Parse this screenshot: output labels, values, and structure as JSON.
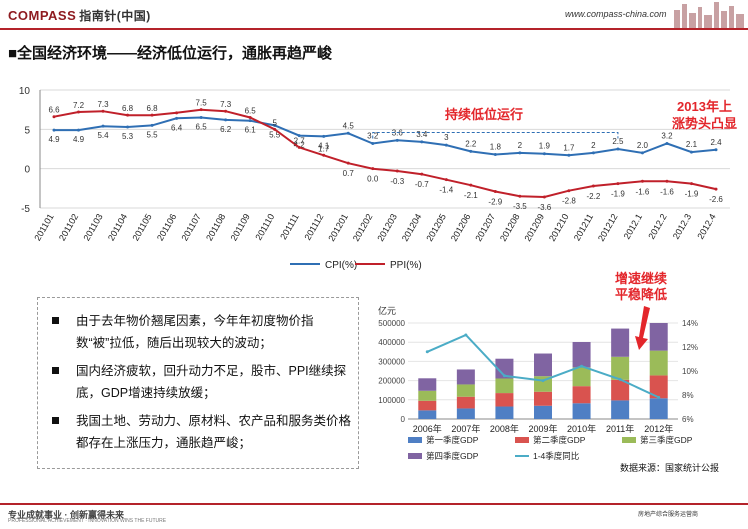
{
  "header": {
    "logo_text": "COMPASS",
    "logo_cn": "指南针(中国)",
    "website": "www.compass-china.com"
  },
  "page_title": "■全国经济环境——经济低位运行，通胀再趋严峻",
  "annotations": {
    "low_run": "持续低位运行",
    "rise_line1": "2013年上",
    "rise_line2": "涨势头凸显",
    "gdp_line1": "增速继续",
    "gdp_line2": "平稳降低"
  },
  "bullets": [
    "由于去年物价翘尾因素，今年年初度物价指数“被”拉低，随后出现较大的波动；",
    "国内经济疲软，回升动力不足，股市、PPI继续探底，GDP增速持续放缓；",
    "我国土地、劳动力、原材料、农产品和服务类价格都存在上涨压力，通胀趋严峻；"
  ],
  "source": "数据来源：国家统计公报",
  "footer": {
    "slogan": "专业成就事业 · 创新赢得未来",
    "slogan_en": "PROFESSIONAL ACHIEVEMENT · INNOVATION WINS THE FUTURE",
    "right": "房地产综合服务运营商"
  },
  "colors": {
    "cpi": "#2f6fb4",
    "ppi": "#c0202a",
    "accent": "#e3262b",
    "q1": "#4f7fc4",
    "q2": "#d9534f",
    "q3": "#9bbb59",
    "q4": "#8064a2",
    "growth": "#4bacc6"
  },
  "chart_data": [
    {
      "type": "line",
      "categories": [
        "201101",
        "201102",
        "201103",
        "201104",
        "201105",
        "201106",
        "201107",
        "201108",
        "201109",
        "201110",
        "201111",
        "201112",
        "201201",
        "201202",
        "201203",
        "201204",
        "201205",
        "201206",
        "201207",
        "201208",
        "201209",
        "201210",
        "201211",
        "201212",
        "2012.1",
        "2012.2",
        "2012.3",
        "2012.4"
      ],
      "ylim": [
        -5,
        10
      ],
      "yticks": [
        -5,
        0,
        5,
        10
      ],
      "series": [
        {
          "name": "CPI(%)",
          "values": [
            4.9,
            4.9,
            5.4,
            5.3,
            5.5,
            6.4,
            6.5,
            6.2,
            6.1,
            5.5,
            4.2,
            4.1,
            4.5,
            3.2,
            3.6,
            3.4,
            3.0,
            2.2,
            1.8,
            2.0,
            1.9,
            1.7,
            2.0,
            2.5,
            2.0,
            3.2,
            2.1,
            2.4
          ]
        },
        {
          "name": "PPI(%)",
          "values": [
            6.6,
            7.2,
            7.3,
            6.8,
            6.8,
            7.1,
            7.5,
            7.3,
            6.5,
            5.0,
            2.7,
            1.7,
            0.7,
            0.0,
            -0.3,
            -0.7,
            -1.4,
            -2.1,
            -2.9,
            -3.5,
            -3.6,
            -2.8,
            -2.2,
            -1.9,
            -1.6,
            -1.6,
            -1.9,
            -2.6
          ]
        }
      ],
      "value_labels": {
        "CPI(%)": [
          "4.9",
          "4.9",
          "5.4",
          "5.3",
          "5.5",
          "6.4",
          "6.5",
          "6.2",
          "6.1",
          "5.5",
          "4.2",
          "4.1",
          "4.5",
          "3.2",
          "3.6",
          "3.4",
          "3",
          "2.2",
          "1.8",
          "2",
          "1.9",
          "1.7",
          "2",
          "2.5",
          "2.0",
          "3.2",
          "2.1",
          "2.4"
        ],
        "PPI(%)": [
          "6.6",
          "7.2",
          "7.3",
          "6.8",
          "6.8",
          "",
          "7.5",
          "7.3",
          "6.5",
          "5",
          "2.7",
          "1.7",
          "0.7",
          "0.0",
          "-0.3",
          "-0.7",
          "-1.4",
          "-2.1",
          "-2.9",
          "-3.5",
          "-3.6",
          "-2.8",
          "-2.2",
          "-1.9",
          "-1.6",
          "-1.6",
          "-1.9",
          "-2.6"
        ]
      },
      "legend": "bottom"
    },
    {
      "type": "bar",
      "stacked": true,
      "categories": [
        "2006年",
        "2007年",
        "2008年",
        "2009年",
        "2010年",
        "2011年",
        "2012年"
      ],
      "y_unit": "亿元",
      "ylim": [
        0,
        500000
      ],
      "yticks": [
        0,
        100000,
        200000,
        300000,
        400000,
        500000
      ],
      "y2lim": [
        6,
        14
      ],
      "y2ticks": [
        "6%",
        "8%",
        "10%",
        "12%",
        "14%"
      ],
      "series": [
        {
          "name": "第一季度GDP",
          "values": [
            45000,
            55000,
            65000,
            69000,
            82000,
            97000,
            108000
          ]
        },
        {
          "name": "第二季度GDP",
          "values": [
            50000,
            61000,
            70000,
            73000,
            89000,
            107000,
            119000
          ]
        },
        {
          "name": "第三季度GDP",
          "values": [
            52000,
            64000,
            76000,
            81000,
            98000,
            120000,
            129000
          ]
        },
        {
          "name": "第四季度GDP",
          "values": [
            65000,
            78000,
            103000,
            118000,
            132000,
            147000,
            144000
          ]
        }
      ],
      "line_series": {
        "name": "1-4季度同比",
        "values": [
          11.6,
          13.0,
          9.6,
          9.2,
          10.4,
          9.3,
          7.8
        ]
      },
      "legend": "bottom"
    }
  ]
}
